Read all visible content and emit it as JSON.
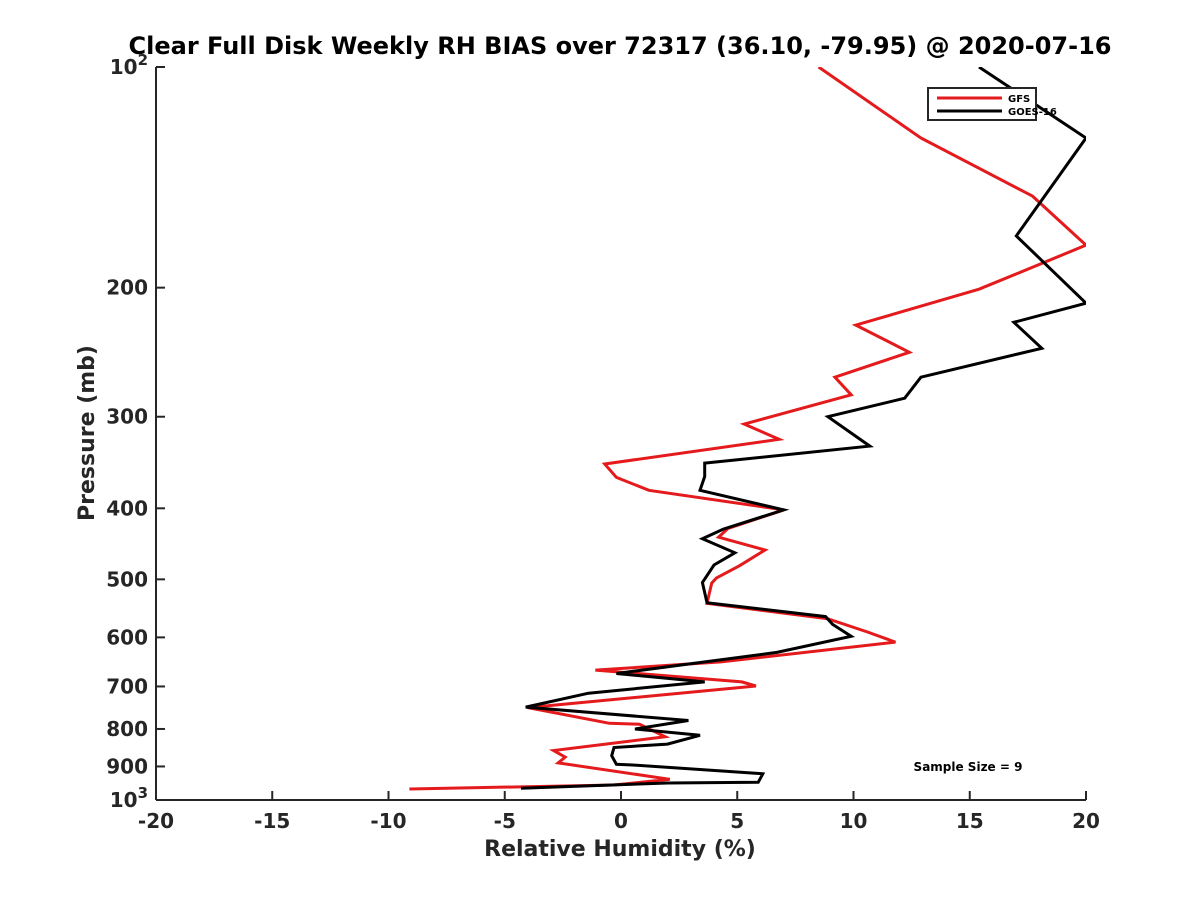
{
  "chart_data": {
    "type": "line",
    "title": "Clear Full Disk Weekly RH BIAS over 72317 (36.10, -79.95) @ 2020-07-16",
    "xlabel": "Relative Humidity (%)",
    "ylabel": "Pressure (mb)",
    "xlim": [
      -20,
      20
    ],
    "ylim": [
      100,
      1000
    ],
    "yscale": "log",
    "yreversed": true,
    "grid": false,
    "legend_position": "top-right",
    "xticks": [
      -20,
      -15,
      -10,
      -5,
      0,
      5,
      10,
      15,
      20
    ],
    "yticks": [
      {
        "value": 100,
        "label": "10",
        "sup": "2"
      },
      {
        "value": 200,
        "label": "200",
        "sup": ""
      },
      {
        "value": 300,
        "label": "300",
        "sup": ""
      },
      {
        "value": 400,
        "label": "400",
        "sup": ""
      },
      {
        "value": 500,
        "label": "500",
        "sup": ""
      },
      {
        "value": 600,
        "label": "600",
        "sup": ""
      },
      {
        "value": 700,
        "label": "700",
        "sup": ""
      },
      {
        "value": 800,
        "label": "800",
        "sup": ""
      },
      {
        "value": 900,
        "label": "900",
        "sup": ""
      },
      {
        "value": 1000,
        "label": "10",
        "sup": "3"
      }
    ],
    "annotation": "Sample Size = 9",
    "series": [
      {
        "name": "GFS",
        "color": "#e41a1c",
        "points": [
          [
            8.5,
            100
          ],
          [
            12.9,
            125
          ],
          [
            17.7,
            150
          ],
          [
            20.0,
            175
          ],
          [
            17.1,
            191
          ],
          [
            15.4,
            201
          ],
          [
            10.1,
            225
          ],
          [
            12.4,
            245
          ],
          [
            9.2,
            265
          ],
          [
            9.9,
            280
          ],
          [
            5.3,
            307
          ],
          [
            6.8,
            322
          ],
          [
            -0.7,
            348
          ],
          [
            -0.2,
            363
          ],
          [
            1.2,
            378
          ],
          [
            7.0,
            402
          ],
          [
            4.6,
            426
          ],
          [
            4.2,
            438
          ],
          [
            6.2,
            456
          ],
          [
            5.1,
            479
          ],
          [
            4.1,
            498
          ],
          [
            3.9,
            506
          ],
          [
            3.7,
            539
          ],
          [
            8.9,
            566
          ],
          [
            10.6,
            590
          ],
          [
            11.8,
            609
          ],
          [
            4.3,
            648
          ],
          [
            -1.1,
            665
          ],
          [
            5.2,
            690
          ],
          [
            5.8,
            699
          ],
          [
            -4.0,
            748
          ],
          [
            -0.5,
            786
          ],
          [
            0.8,
            788
          ],
          [
            1.9,
            820
          ],
          [
            -2.9,
            856
          ],
          [
            -2.4,
            874
          ],
          [
            -2.7,
            890
          ],
          [
            2.1,
            937
          ],
          [
            -0.3,
            954
          ],
          [
            -9.1,
            966
          ]
        ]
      },
      {
        "name": "GOES-16",
        "color": "#000000",
        "points": [
          [
            15.4,
            100
          ],
          [
            20.0,
            125
          ],
          [
            17.0,
            170
          ],
          [
            20.0,
            210
          ],
          [
            16.9,
            223
          ],
          [
            18.1,
            242
          ],
          [
            12.9,
            265
          ],
          [
            12.2,
            283
          ],
          [
            8.9,
            300
          ],
          [
            10.7,
            329
          ],
          [
            3.6,
            347
          ],
          [
            3.6,
            362
          ],
          [
            3.4,
            378
          ],
          [
            7.0,
            402
          ],
          [
            4.4,
            427
          ],
          [
            3.5,
            440
          ],
          [
            4.9,
            460
          ],
          [
            4.0,
            478
          ],
          [
            3.5,
            505
          ],
          [
            3.7,
            538
          ],
          [
            8.8,
            562
          ],
          [
            9.1,
            576
          ],
          [
            9.9,
            598
          ],
          [
            6.7,
            629
          ],
          [
            -0.2,
            672
          ],
          [
            3.6,
            690
          ],
          [
            -1.4,
            715
          ],
          [
            -4.1,
            747
          ],
          [
            2.9,
            779
          ],
          [
            0.6,
            800
          ],
          [
            3.4,
            816
          ],
          [
            2.0,
            839
          ],
          [
            -0.3,
            848
          ],
          [
            -0.4,
            870
          ],
          [
            -0.2,
            894
          ],
          [
            0.5,
            896
          ],
          [
            6.1,
            921
          ],
          [
            5.9,
            946
          ],
          [
            2.0,
            948
          ],
          [
            -4.3,
            964
          ]
        ]
      }
    ]
  }
}
